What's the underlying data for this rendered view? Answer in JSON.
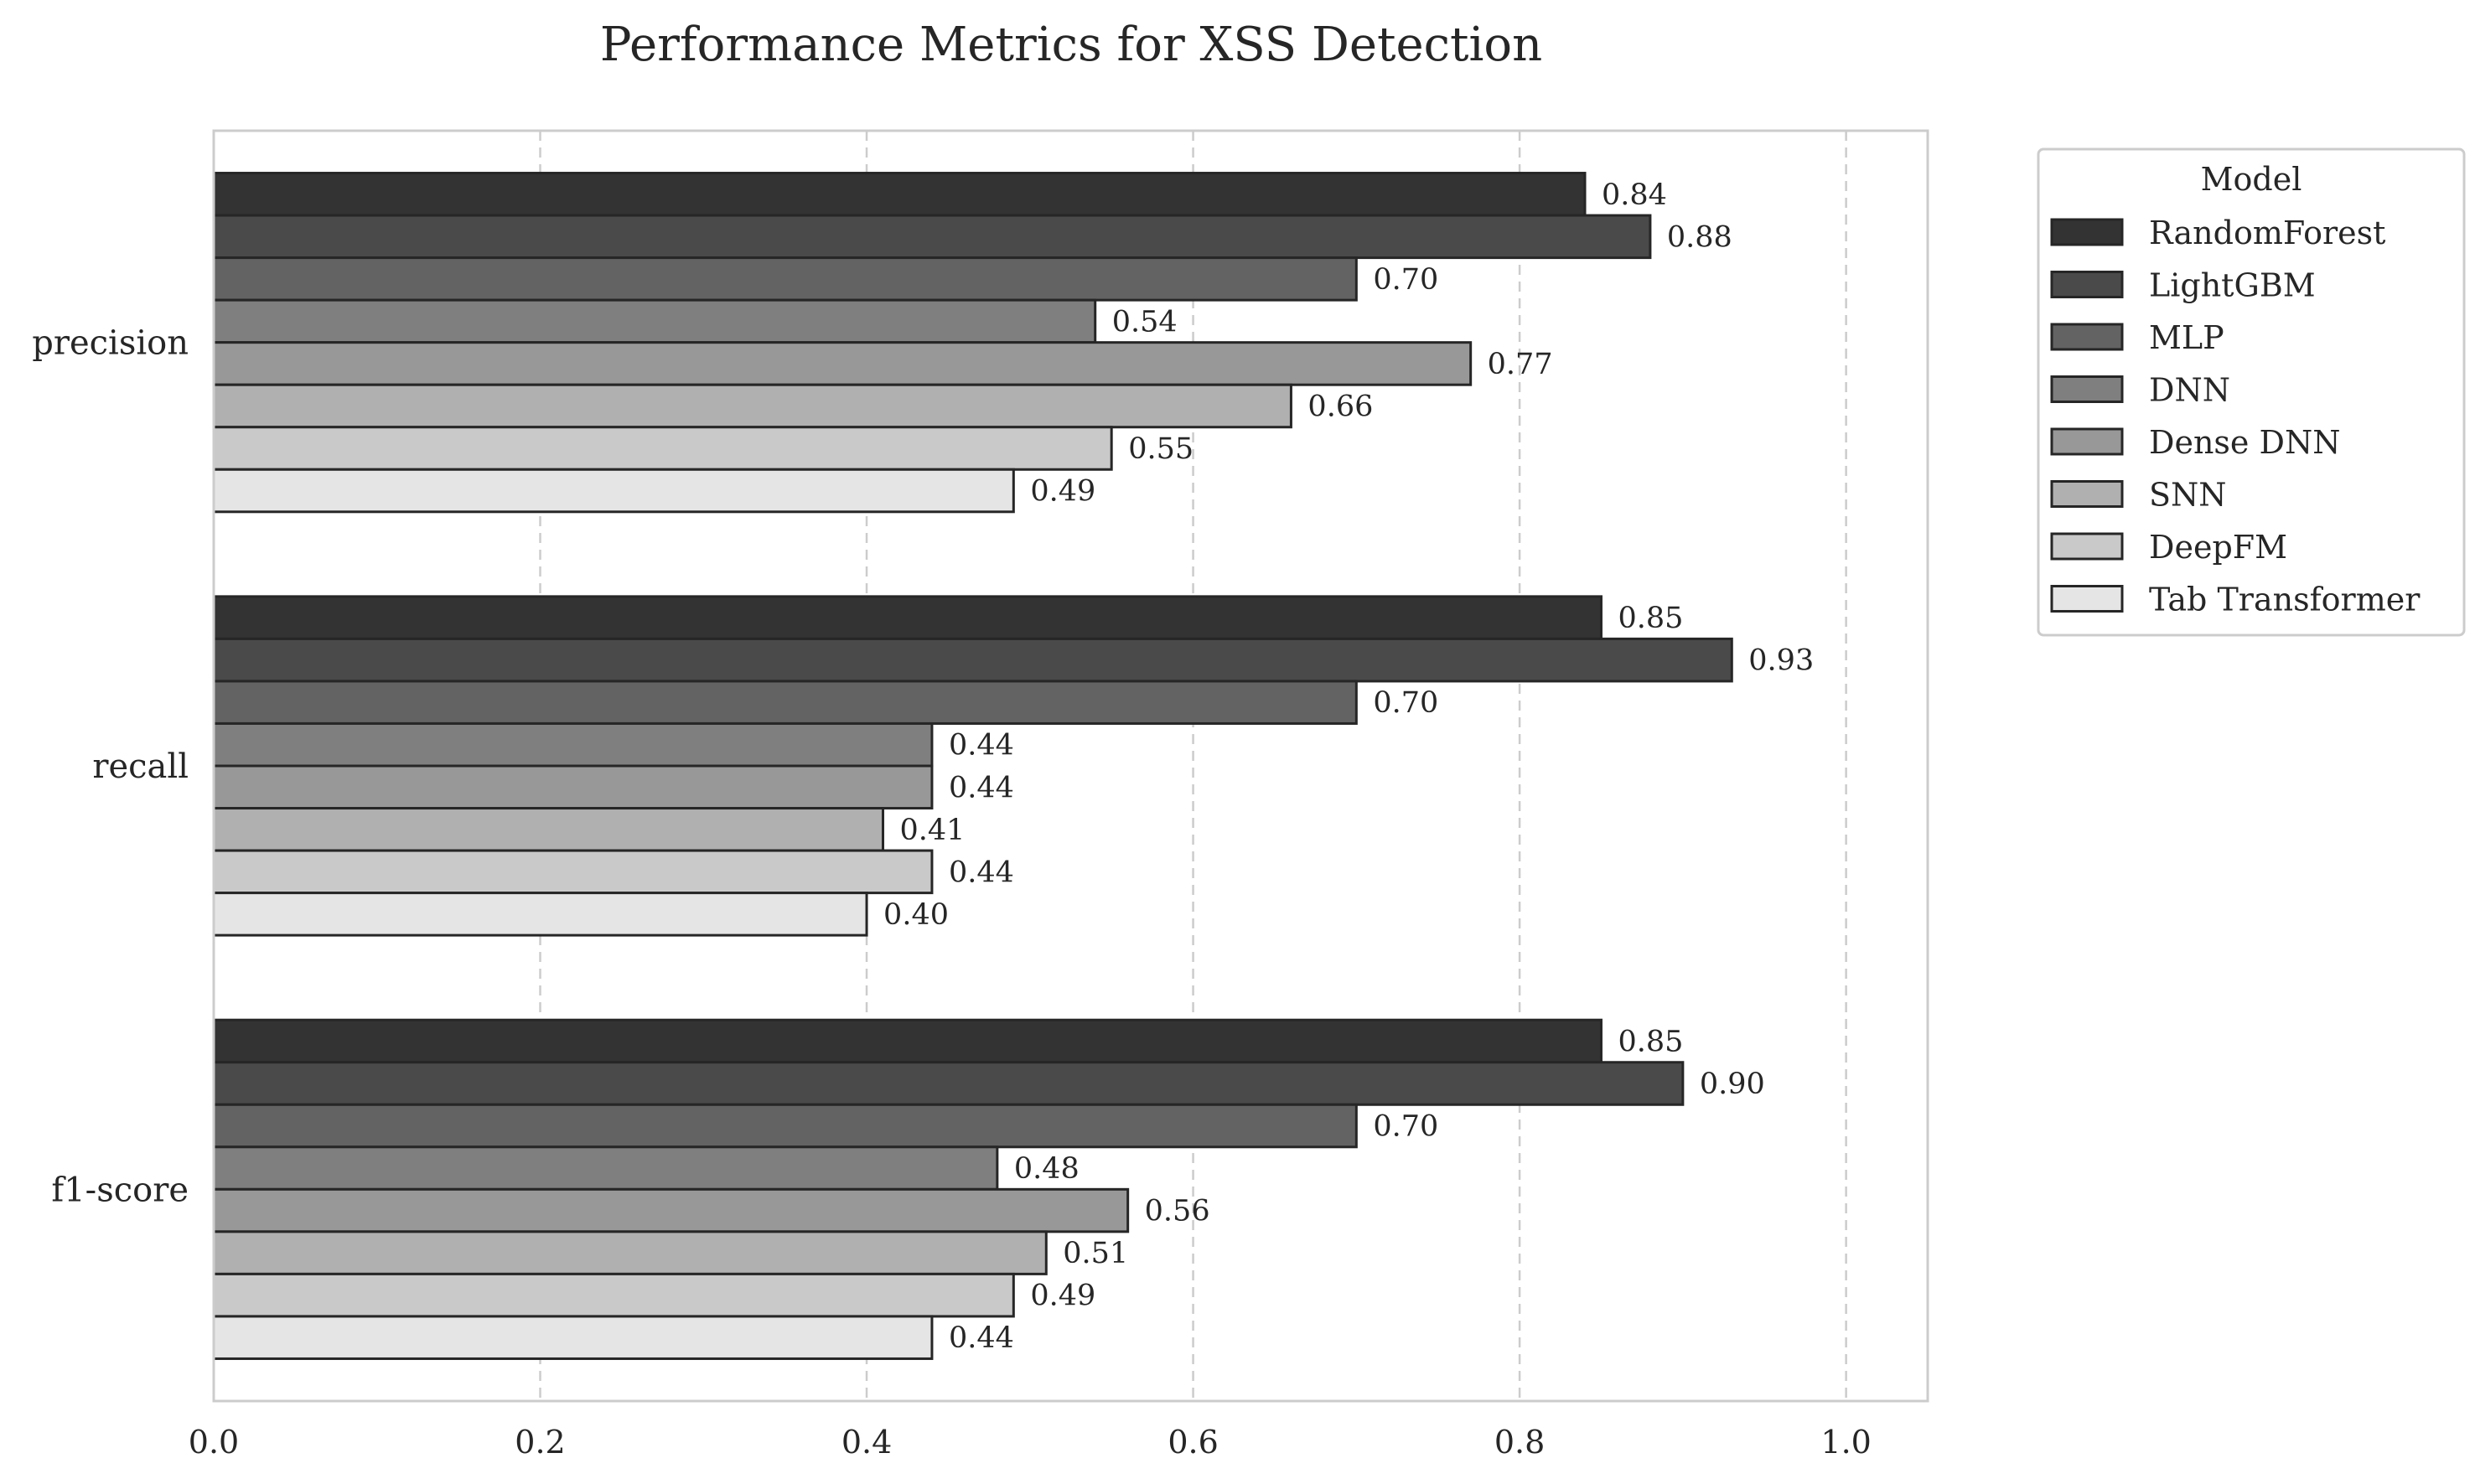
{
  "chart_data": {
    "type": "bar",
    "orientation": "horizontal",
    "title": "Performance Metrics for XSS Detection",
    "xlabel": "",
    "ylabel": "",
    "categories": [
      "precision",
      "recall",
      "f1-score"
    ],
    "xlim": [
      0,
      1.05
    ],
    "x_ticks": [
      "0.0",
      "0.2",
      "0.4",
      "0.6",
      "0.8",
      "1.0"
    ],
    "grid": "x, dashed",
    "legend": {
      "title": "Model",
      "placement": "outside upper right"
    },
    "series": [
      {
        "name": "RandomForest",
        "color": "#333333",
        "values": [
          0.84,
          0.85,
          0.85
        ],
        "labels": [
          "0.84",
          "0.85",
          "0.85"
        ]
      },
      {
        "name": "LightGBM",
        "color": "#4a4a4a",
        "values": [
          0.88,
          0.93,
          0.9
        ],
        "labels": [
          "0.88",
          "0.93",
          "0.90"
        ]
      },
      {
        "name": "MLP",
        "color": "#636363",
        "values": [
          0.7,
          0.7,
          0.7
        ],
        "labels": [
          "0.70",
          "0.70",
          "0.70"
        ]
      },
      {
        "name": "DNN",
        "color": "#7f7f7f",
        "values": [
          0.54,
          0.44,
          0.48
        ],
        "labels": [
          "0.54",
          "0.44",
          "0.48"
        ]
      },
      {
        "name": "Dense DNN",
        "color": "#989898",
        "values": [
          0.77,
          0.44,
          0.56
        ],
        "labels": [
          "0.77",
          "0.44",
          "0.56"
        ]
      },
      {
        "name": "SNN",
        "color": "#b0b0b0",
        "values": [
          0.66,
          0.41,
          0.51
        ],
        "labels": [
          "0.66",
          "0.41",
          "0.51"
        ]
      },
      {
        "name": "DeepFM",
        "color": "#c9c9c9",
        "values": [
          0.55,
          0.44,
          0.49
        ],
        "labels": [
          "0.55",
          "0.44",
          "0.49"
        ]
      },
      {
        "name": "Tab Transformer",
        "color": "#e5e5e5",
        "values": [
          0.49,
          0.4,
          0.44
        ],
        "labels": [
          "0.49",
          "0.40",
          "0.44"
        ]
      }
    ]
  }
}
